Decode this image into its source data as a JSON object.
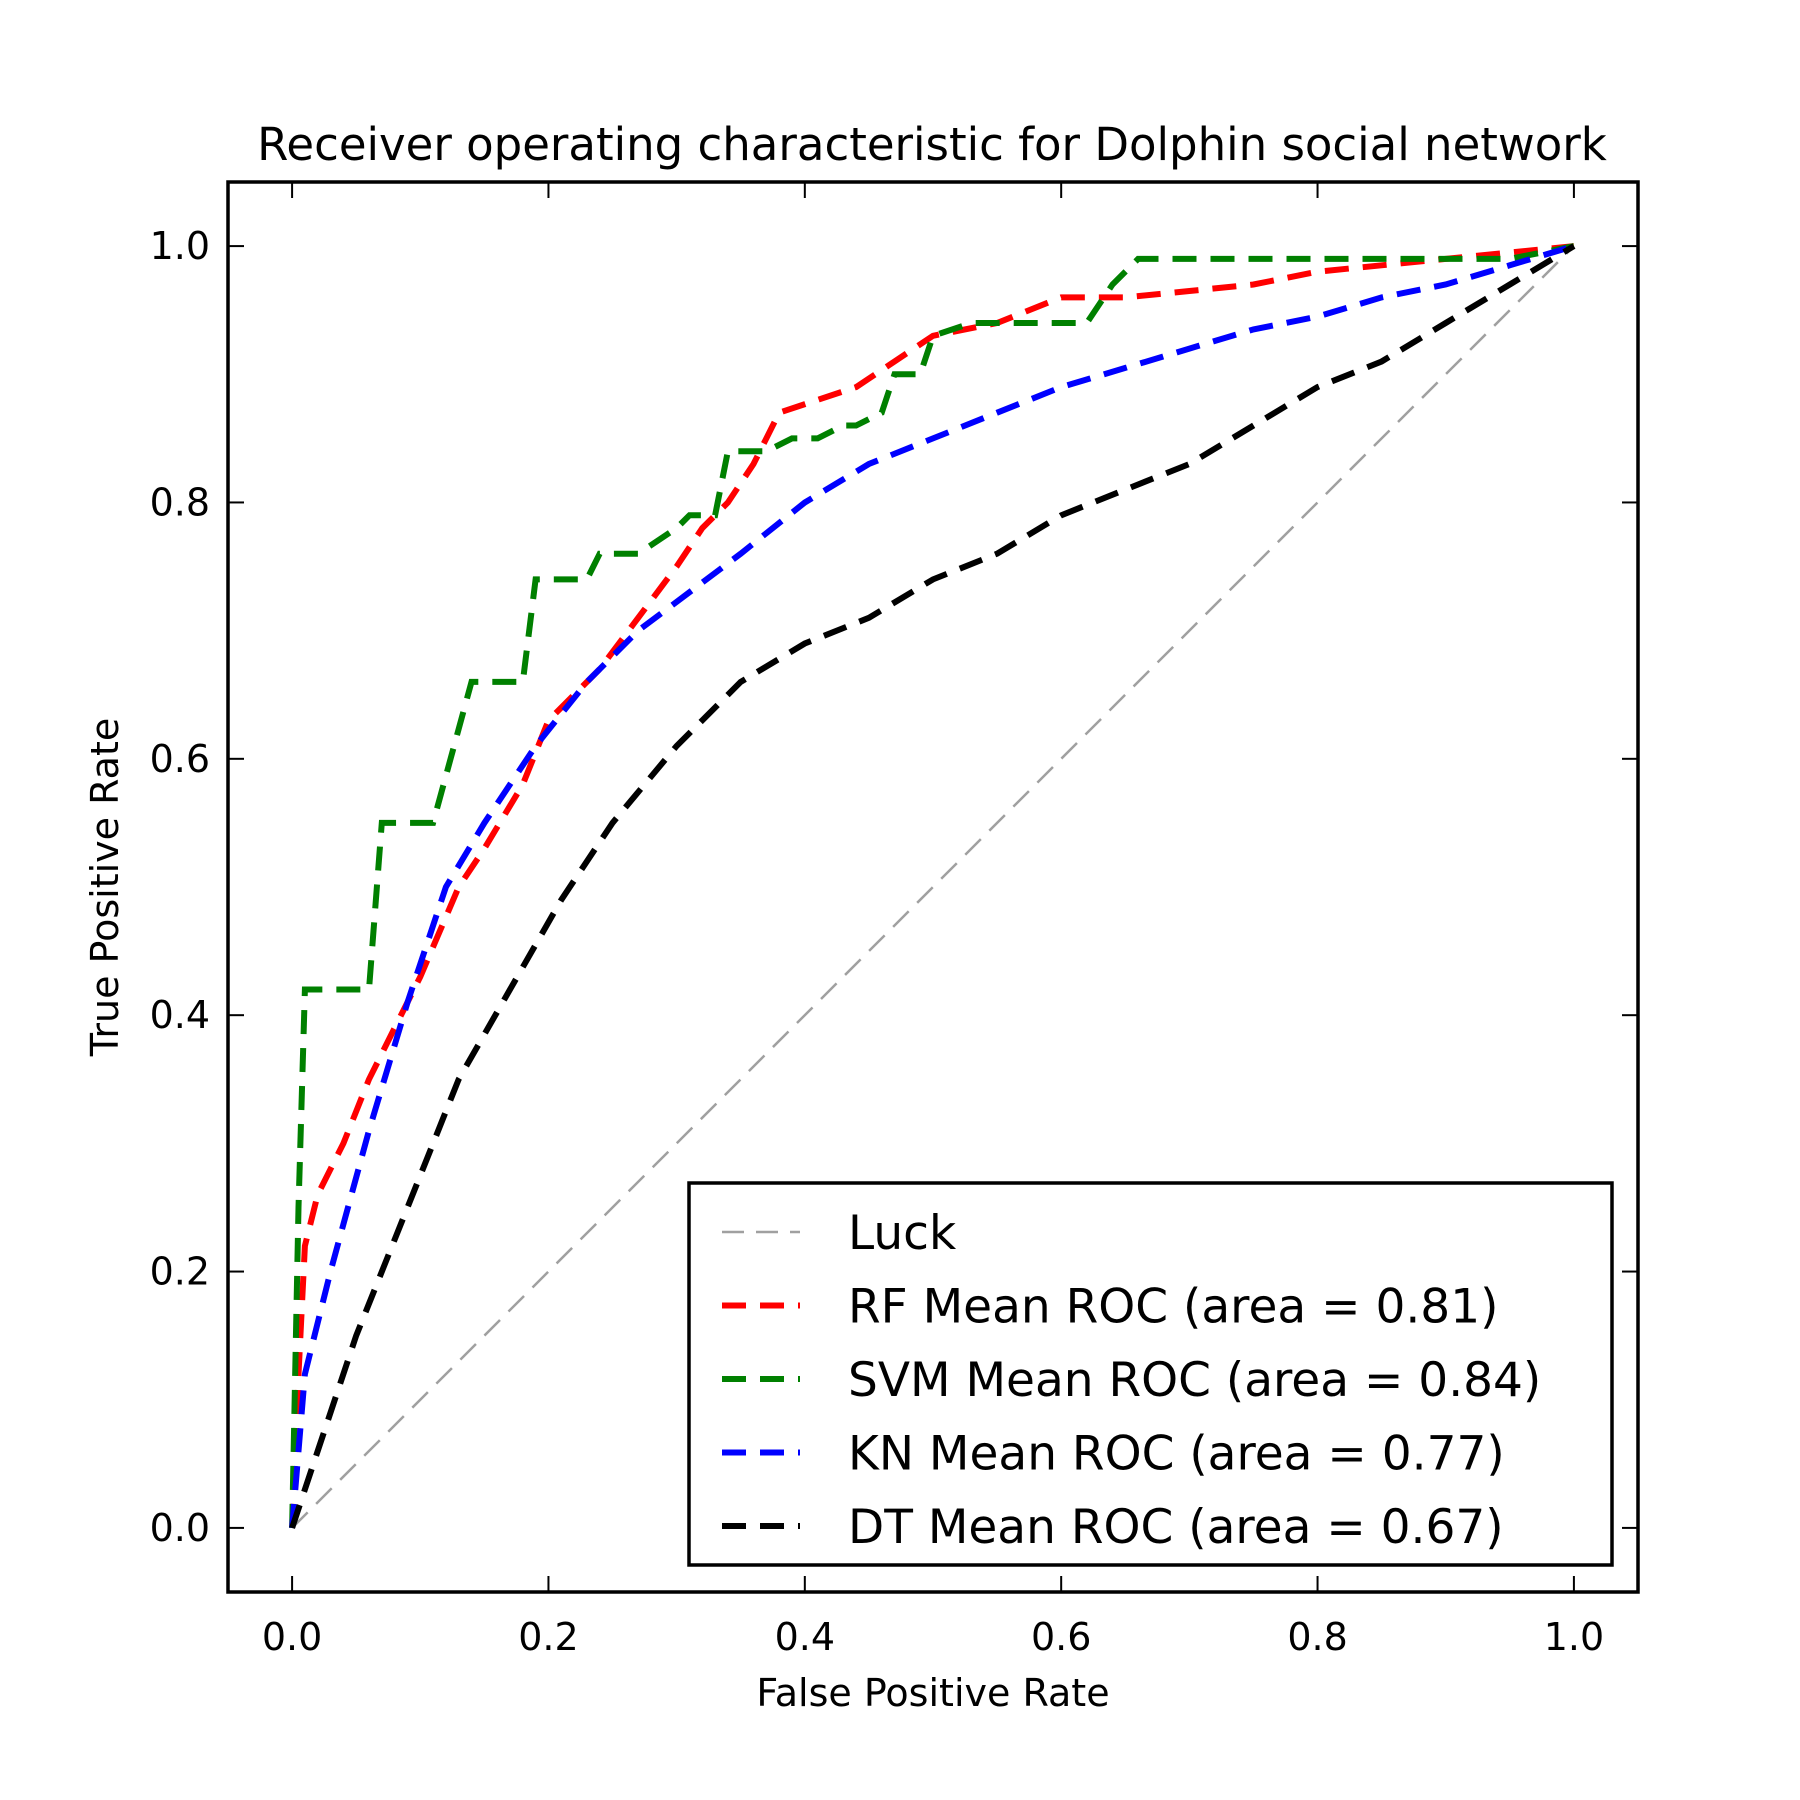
{
  "chart_data": {
    "type": "line",
    "title": "Receiver operating characteristic for Dolphin social network",
    "xlabel": "False Positive Rate",
    "ylabel": "True Positive Rate",
    "xlim": [
      -0.05,
      1.05
    ],
    "ylim": [
      -0.05,
      1.05
    ],
    "xticks": [
      "0.0",
      "0.2",
      "0.4",
      "0.6",
      "0.8",
      "1.0"
    ],
    "yticks": [
      "0.0",
      "0.2",
      "0.4",
      "0.6",
      "0.8",
      "1.0"
    ],
    "xtick_values": [
      0.0,
      0.2,
      0.4,
      0.6,
      0.8,
      1.0
    ],
    "ytick_values": [
      0.0,
      0.2,
      0.4,
      0.6,
      0.8,
      1.0
    ],
    "grid": false,
    "legend_position": "lower-right",
    "series": [
      {
        "name": "Luck",
        "color": "#a0a0a0",
        "style": "thin-dashed",
        "x": [
          0,
          1
        ],
        "y": [
          0,
          1
        ]
      },
      {
        "name": "RF Mean ROC (area = 0.81)",
        "color": "#ff0000",
        "style": "dashed",
        "x": [
          0,
          0.005,
          0.01,
          0.02,
          0.04,
          0.06,
          0.08,
          0.1,
          0.13,
          0.15,
          0.18,
          0.2,
          0.24,
          0.27,
          0.3,
          0.32,
          0.34,
          0.36,
          0.38,
          0.41,
          0.44,
          0.47,
          0.5,
          0.55,
          0.6,
          0.65,
          0.7,
          0.75,
          0.8,
          0.9,
          1.0
        ],
        "y": [
          0,
          0.12,
          0.22,
          0.26,
          0.3,
          0.35,
          0.39,
          0.43,
          0.5,
          0.53,
          0.58,
          0.63,
          0.67,
          0.71,
          0.75,
          0.78,
          0.8,
          0.83,
          0.87,
          0.88,
          0.89,
          0.91,
          0.93,
          0.94,
          0.96,
          0.96,
          0.965,
          0.97,
          0.98,
          0.99,
          1.0
        ]
      },
      {
        "name": "SVM Mean ROC (area = 0.84)",
        "color": "#008000",
        "style": "dashed",
        "x": [
          0,
          0.005,
          0.01,
          0.06,
          0.07,
          0.11,
          0.14,
          0.18,
          0.19,
          0.23,
          0.24,
          0.27,
          0.3,
          0.31,
          0.33,
          0.34,
          0.36,
          0.37,
          0.39,
          0.41,
          0.43,
          0.44,
          0.46,
          0.47,
          0.49,
          0.5,
          0.53,
          0.56,
          0.6,
          0.62,
          0.64,
          0.66,
          0.7,
          0.8,
          0.9,
          0.95,
          1.0
        ],
        "y": [
          0,
          0.25,
          0.42,
          0.42,
          0.55,
          0.55,
          0.66,
          0.66,
          0.74,
          0.74,
          0.76,
          0.76,
          0.78,
          0.79,
          0.79,
          0.84,
          0.84,
          0.84,
          0.85,
          0.85,
          0.86,
          0.86,
          0.87,
          0.9,
          0.9,
          0.93,
          0.94,
          0.94,
          0.94,
          0.94,
          0.97,
          0.99,
          0.99,
          0.99,
          0.99,
          0.99,
          1.0
        ]
      },
      {
        "name": "KN Mean ROC (area = 0.77)",
        "color": "#0000ff",
        "style": "dashed",
        "x": [
          0,
          0.005,
          0.01,
          0.03,
          0.06,
          0.09,
          0.12,
          0.15,
          0.19,
          0.23,
          0.27,
          0.31,
          0.35,
          0.4,
          0.45,
          0.5,
          0.55,
          0.6,
          0.65,
          0.7,
          0.75,
          0.8,
          0.85,
          0.9,
          0.95,
          1.0
        ],
        "y": [
          0,
          0.06,
          0.12,
          0.2,
          0.31,
          0.41,
          0.5,
          0.55,
          0.61,
          0.66,
          0.7,
          0.73,
          0.76,
          0.8,
          0.83,
          0.85,
          0.87,
          0.89,
          0.905,
          0.92,
          0.935,
          0.945,
          0.96,
          0.97,
          0.985,
          1.0
        ]
      },
      {
        "name": "DT Mean ROC (area = 0.67)",
        "color": "#000000",
        "style": "dashed",
        "x": [
          0,
          0.02,
          0.05,
          0.09,
          0.13,
          0.17,
          0.21,
          0.25,
          0.3,
          0.35,
          0.4,
          0.45,
          0.5,
          0.55,
          0.6,
          0.65,
          0.7,
          0.75,
          0.8,
          0.85,
          0.9,
          0.95,
          1.0
        ],
        "y": [
          0,
          0.06,
          0.15,
          0.25,
          0.35,
          0.42,
          0.49,
          0.55,
          0.61,
          0.66,
          0.69,
          0.71,
          0.74,
          0.76,
          0.79,
          0.81,
          0.83,
          0.86,
          0.89,
          0.91,
          0.94,
          0.97,
          1.0
        ]
      }
    ]
  }
}
